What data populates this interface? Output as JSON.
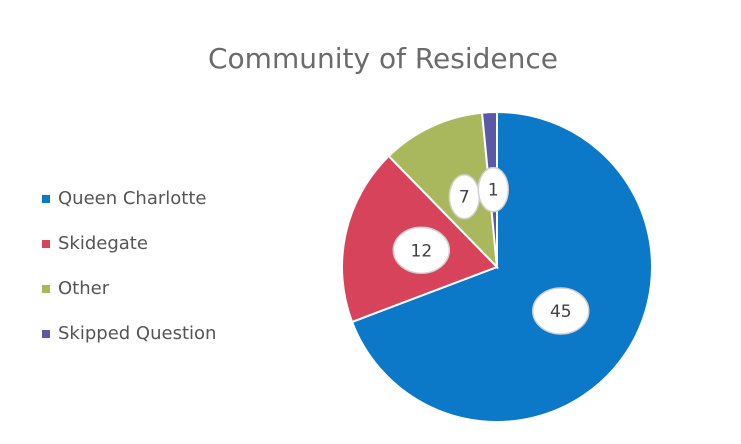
{
  "chart_data": {
    "type": "pie",
    "title": "Community of Residence",
    "categories": [
      "Queen Charlotte",
      "Skidegate",
      "Other",
      "Skipped Question"
    ],
    "values": [
      45,
      12,
      7,
      1
    ],
    "colors": [
      "#0b78c8",
      "#d8435c",
      "#a9b85c",
      "#5b58a6"
    ],
    "legend": "left"
  }
}
